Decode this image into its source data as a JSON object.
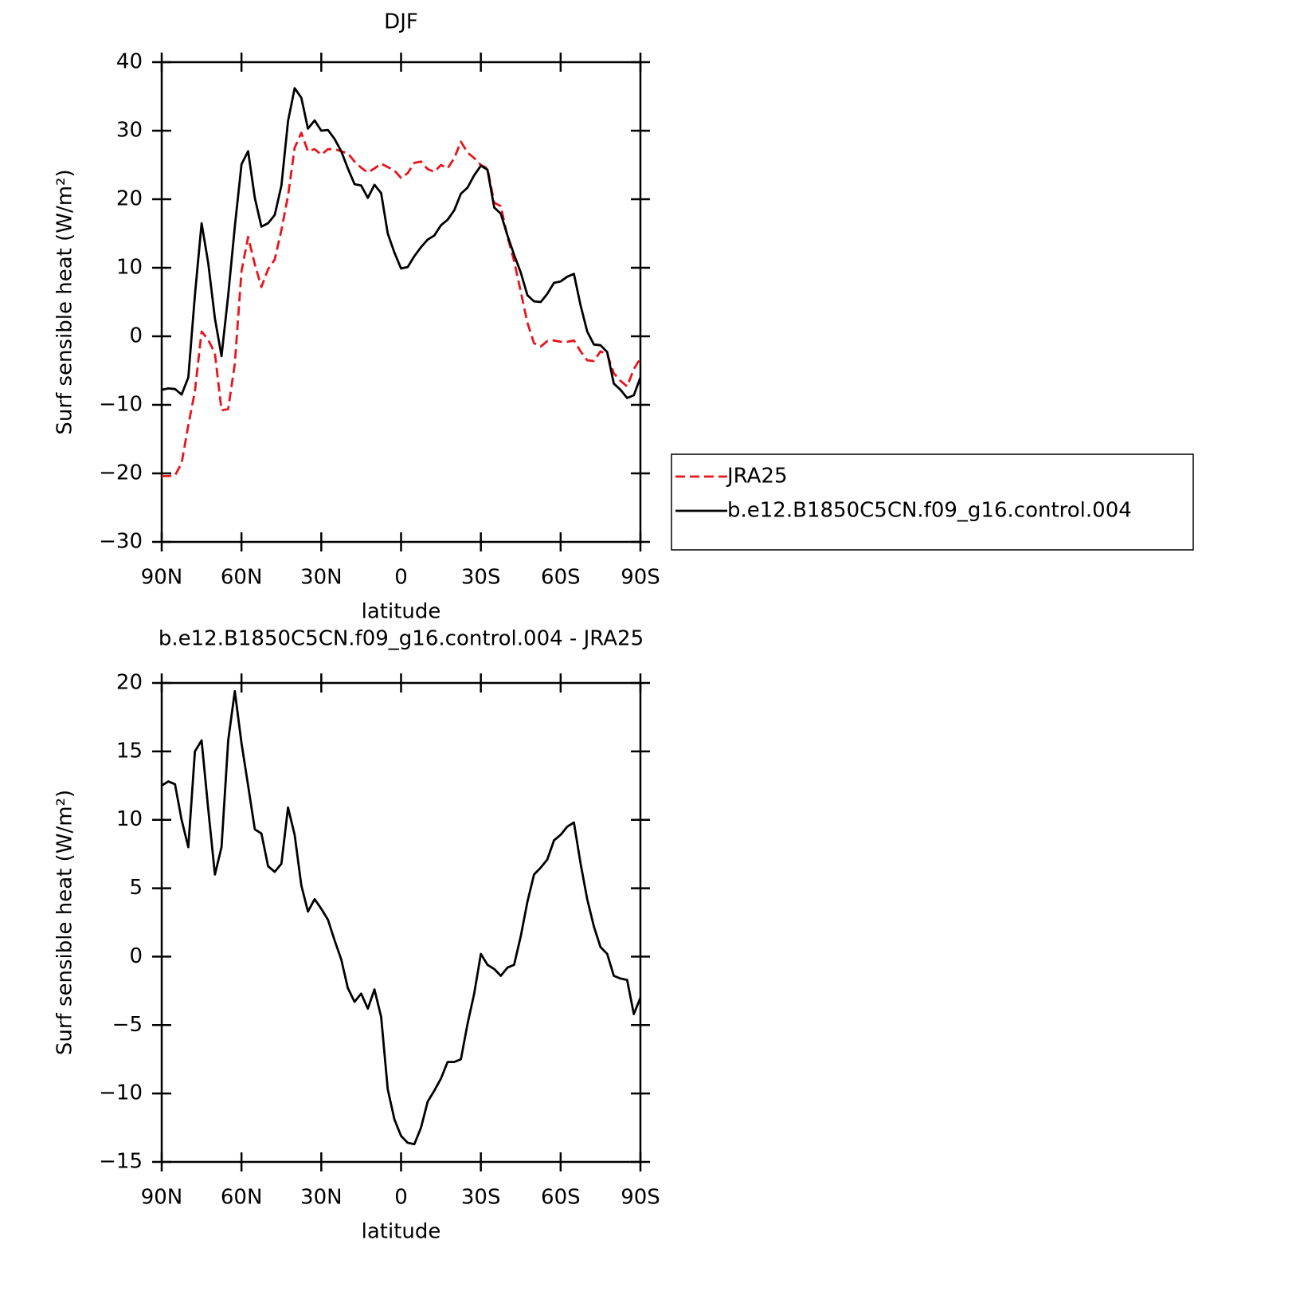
{
  "chart_data": [
    {
      "type": "line",
      "title": "DJF",
      "x_label": "latitude",
      "y_label": "Surf sensible heat (W/m²)",
      "x": [
        90,
        87.5,
        85,
        82.5,
        80,
        77.5,
        75,
        72.5,
        70,
        67.5,
        65,
        62.5,
        60,
        57.5,
        55,
        52.5,
        50,
        47.5,
        45,
        42.5,
        40,
        37.5,
        35,
        32.5,
        30,
        27.5,
        25,
        22.5,
        20,
        17.5,
        15,
        12.5,
        10,
        7.5,
        5,
        2.5,
        0,
        -2.5,
        -5,
        -7.5,
        -10,
        -12.5,
        -15,
        -17.5,
        -20,
        -22.5,
        -25,
        -27.5,
        -30,
        -32.5,
        -35,
        -37.5,
        -40,
        -42.5,
        -45,
        -47.5,
        -50,
        -52.5,
        -55,
        -57.5,
        -60,
        -62.5,
        -65,
        -67.5,
        -70,
        -72.5,
        -75,
        -77.5,
        -80,
        -82.5,
        -85,
        -87.5,
        -90
      ],
      "series": [
        {
          "name": "JRA25",
          "color": "#e8141a",
          "dashed": true,
          "values": [
            -20.4,
            -20.4,
            -20.3,
            -18.5,
            -13,
            -8,
            0.7,
            -0.5,
            -2.5,
            -10.8,
            -10.6,
            -4,
            9.5,
            14.5,
            10.5,
            7.2,
            9.8,
            11.2,
            15.5,
            20.5,
            27.5,
            29.7,
            27,
            27.3,
            26.5,
            27.3,
            27.3,
            27,
            26.7,
            25.5,
            24.6,
            23.9,
            24.5,
            25.2,
            24.7,
            24.2,
            23.1,
            23.8,
            25.3,
            25.5,
            24.4,
            24,
            25,
            24.5,
            26,
            28.4,
            26.8,
            26,
            25,
            24.5,
            19.5,
            19,
            14.5,
            11,
            6.5,
            2,
            -1,
            -1.5,
            -0.7,
            -0.6,
            -0.8,
            -0.8,
            -0.6,
            -2.2,
            -3.5,
            -3.6,
            -2.2,
            -2.6,
            -5.4,
            -6.5,
            -7.3,
            -4.8,
            -3.2
          ]
        },
        {
          "name": "b.e12.B1850C5CN.f09_g16.control.004",
          "color": "#000000",
          "dashed": false,
          "values": [
            -7.8,
            -7.6,
            -7.7,
            -8.5,
            -6,
            6,
            16.5,
            10.7,
            2.6,
            -2.9,
            6,
            16,
            25.1,
            27,
            20.2,
            16,
            16.5,
            17.7,
            22,
            31.4,
            36.2,
            34.8,
            30.3,
            31.5,
            30,
            30.1,
            28.8,
            27,
            24.5,
            22.2,
            22,
            20.2,
            22.1,
            20.9,
            15,
            12.2,
            9.9,
            10.1,
            11.7,
            13,
            14.1,
            14.7,
            16.2,
            17,
            18.4,
            20.8,
            21.7,
            23.5,
            24.9,
            24.3,
            18.8,
            17.9,
            14.7,
            11.9,
            9.3,
            6,
            5.1,
            5,
            6.2,
            7.8,
            8,
            8.7,
            9.1,
            4.5,
            0.7,
            -1.2,
            -1.3,
            -2.3,
            -6.9,
            -7.8,
            -9,
            -8.6,
            -6
          ]
        }
      ],
      "xlim": [
        90,
        -90
      ],
      "xticks": [
        {
          "value": 90,
          "label": "90N"
        },
        {
          "value": 60,
          "label": "60N"
        },
        {
          "value": 30,
          "label": "30N"
        },
        0,
        {
          "value": -30,
          "label": "30S"
        },
        {
          "value": -60,
          "label": "60S"
        },
        {
          "value": -90,
          "label": "90S"
        }
      ],
      "ylim": [
        -30,
        40
      ],
      "yticks": [
        {
          "value": -30,
          "label": "−30"
        },
        {
          "value": -20,
          "label": "−20"
        },
        {
          "value": -10,
          "label": "−10"
        },
        0,
        10,
        20,
        30,
        40
      ],
      "legend": "right"
    },
    {
      "type": "line",
      "title": "b.e12.B1850C5CN.f09_g16.control.004 - JRA25",
      "x_label": "latitude",
      "y_label": "Surf sensible heat (W/m²)",
      "x": [
        90,
        87.5,
        85,
        82.5,
        80,
        77.5,
        75,
        72.5,
        70,
        67.5,
        65,
        62.5,
        60,
        57.5,
        55,
        52.5,
        50,
        47.5,
        45,
        42.5,
        40,
        37.5,
        35,
        32.5,
        30,
        27.5,
        25,
        22.5,
        20,
        17.5,
        15,
        12.5,
        10,
        7.5,
        5,
        2.5,
        0,
        -2.5,
        -5,
        -7.5,
        -10,
        -12.5,
        -15,
        -17.5,
        -20,
        -22.5,
        -25,
        -27.5,
        -30,
        -32.5,
        -35,
        -37.5,
        -40,
        -42.5,
        -45,
        -47.5,
        -50,
        -52.5,
        -55,
        -57.5,
        -60,
        -62.5,
        -65,
        -67.5,
        -70,
        -72.5,
        -75,
        -77.5,
        -80,
        -82.5,
        -85,
        -87.5,
        -90
      ],
      "values": [
        12.5,
        12.8,
        12.6,
        10,
        8,
        15,
        15.8,
        10.8,
        6,
        8,
        15.8,
        19.4,
        15.6,
        12.5,
        9.3,
        9,
        6.6,
        6.2,
        6.8,
        10.9,
        8.9,
        5.2,
        3.3,
        4.2,
        3.5,
        2.7,
        1.2,
        -0.2,
        -2.3,
        -3.3,
        -2.7,
        -3.8,
        -2.4,
        -4.4,
        -9.7,
        -11.9,
        -13.1,
        -13.6,
        -13.7,
        -12.5,
        -10.6,
        -9.8,
        -8.9,
        -7.7,
        -7.7,
        -7.5,
        -4.9,
        -2.7,
        0.2,
        -0.6,
        -0.9,
        -1.4,
        -0.8,
        -0.6,
        1.5,
        4,
        6,
        6.5,
        7.1,
        8.5,
        8.9,
        9.5,
        9.8,
        6.8,
        4.2,
        2.2,
        0.7,
        0.2,
        -1.4,
        -1.6,
        -1.7,
        -4.2,
        -3
      ],
      "color": "#000000",
      "xlim": [
        90,
        -90
      ],
      "xticks": [
        {
          "value": 90,
          "label": "90N"
        },
        {
          "value": 60,
          "label": "60N"
        },
        {
          "value": 30,
          "label": "30N"
        },
        0,
        {
          "value": -30,
          "label": "30S"
        },
        {
          "value": -60,
          "label": "60S"
        },
        {
          "value": -90,
          "label": "90S"
        }
      ],
      "ylim": [
        -15,
        20
      ],
      "yticks": [
        {
          "value": -15,
          "label": "−15"
        },
        {
          "value": -10,
          "label": "−10"
        },
        {
          "value": -5,
          "label": "−5"
        },
        0,
        5,
        10,
        15,
        20
      ]
    }
  ]
}
